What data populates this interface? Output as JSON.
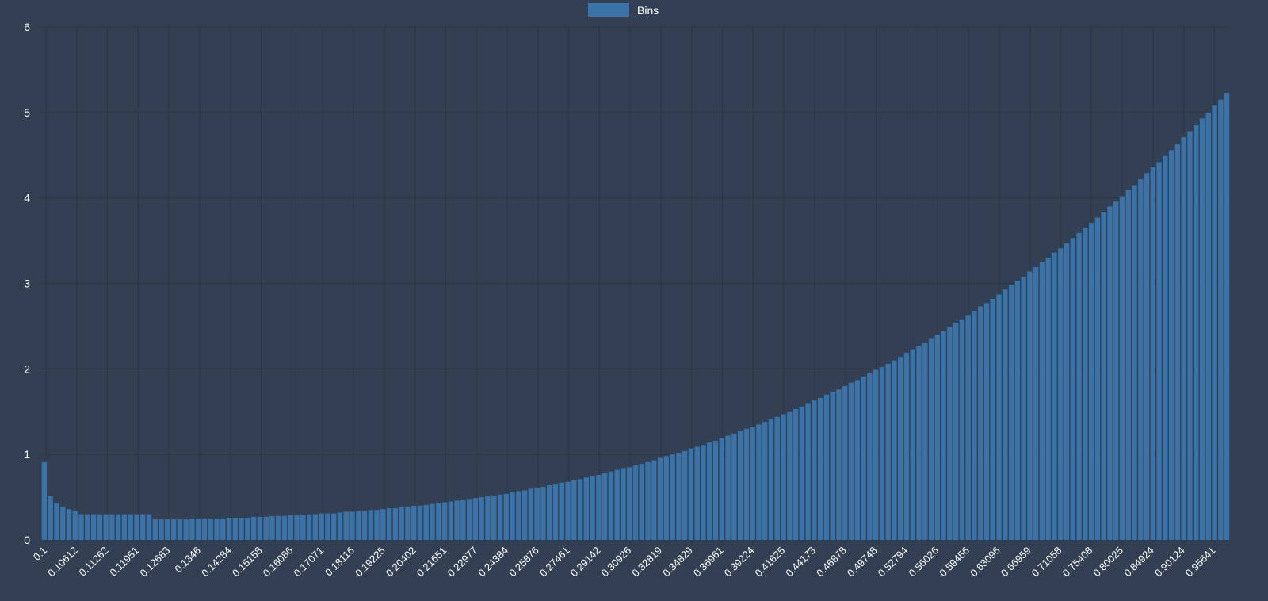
{
  "chart_data": {
    "type": "bar",
    "title": "",
    "xlabel": "",
    "ylabel": "",
    "ylim": [
      0,
      6
    ],
    "yticks": [
      0,
      1,
      2,
      3,
      4,
      5,
      6
    ],
    "grid": true,
    "legend_position": "top-center",
    "colors": {
      "background": "#333f52",
      "bar": "#3b73a8",
      "grid": "#2b3545",
      "text": "#ffffff"
    },
    "series": [
      {
        "name": "Bins",
        "x_start": 0.1,
        "x_end": 1.0,
        "count": 193,
        "values": []
      }
    ],
    "x_tick_labels": [
      "0.1",
      "0.10612",
      "0.11262",
      "0.11951",
      "0.12683",
      "0.1346",
      "0.14284",
      "0.15158",
      "0.16086",
      "0.17071",
      "0.18116",
      "0.19225",
      "0.20402",
      "0.21651",
      "0.22977",
      "0.24384",
      "0.25876",
      "0.27461",
      "0.29142",
      "0.30926",
      "0.32819",
      "0.34829",
      "0.36961",
      "0.39224",
      "0.41625",
      "0.44173",
      "0.46878",
      "0.49748",
      "0.52794",
      "0.56026",
      "0.59456",
      "0.63096",
      "0.66959",
      "0.71058",
      "0.75408",
      "0.80025",
      "0.84924",
      "0.90124",
      "0.95641"
    ]
  }
}
